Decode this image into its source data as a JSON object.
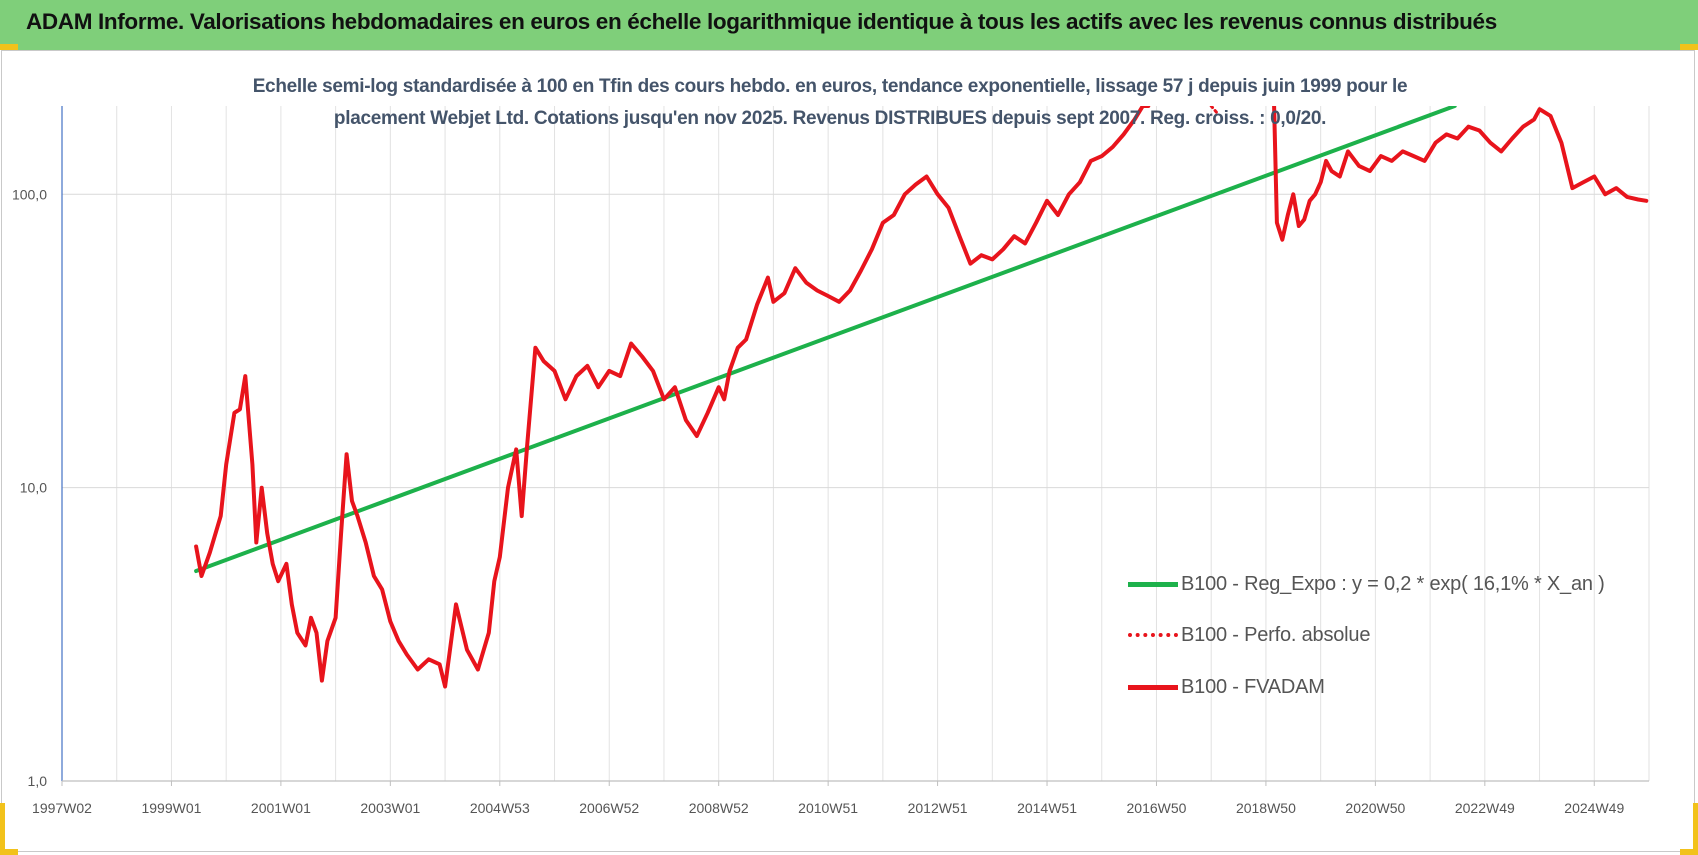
{
  "header": {
    "title": "ADAM Informe. Valorisations hebdomadaires en euros en échelle logarithmique identique à tous les actifs avec les revenus connus distribués"
  },
  "chart_data": {
    "type": "line",
    "title_line1": "Echelle semi-log standardisée à 100 en Tfin des cours hebdo. en euros, tendance exponentielle, lissage 57 j depuis juin 1999 pour le",
    "title_line2": "placement Webjet Ltd. Cotations jusqu'en nov 2025. Revenus DISTRIBUES depuis sept 2007. Reg. croiss. : 0,0/20.",
    "y_scale": "log",
    "ylim": [
      1,
      200
    ],
    "xlim": [
      1997.0,
      2026.0
    ],
    "y_ticks": [
      {
        "value": 1,
        "label": "1,0"
      },
      {
        "value": 10,
        "label": "10,0"
      },
      {
        "value": 100,
        "label": "100,0"
      }
    ],
    "x_ticks": [
      {
        "value": 1997.0,
        "label": "1997W02"
      },
      {
        "value": 1999.0,
        "label": "1999W01"
      },
      {
        "value": 2001.0,
        "label": "2001W01"
      },
      {
        "value": 2003.0,
        "label": "2003W01"
      },
      {
        "value": 2005.0,
        "label": "2004W53"
      },
      {
        "value": 2007.0,
        "label": "2006W52"
      },
      {
        "value": 2009.0,
        "label": "2008W52"
      },
      {
        "value": 2011.0,
        "label": "2010W51"
      },
      {
        "value": 2013.0,
        "label": "2012W51"
      },
      {
        "value": 2015.0,
        "label": "2014W51"
      },
      {
        "value": 2017.0,
        "label": "2016W50"
      },
      {
        "value": 2019.0,
        "label": "2018W50"
      },
      {
        "value": 2021.0,
        "label": "2020W50"
      },
      {
        "value": 2023.0,
        "label": "2022W49"
      },
      {
        "value": 2025.0,
        "label": "2024W49"
      }
    ],
    "grid": true,
    "legend_position": "right",
    "series": [
      {
        "name": "B100 - Reg_Expo : y = 0,2 * exp( 16,1% *  X_an )",
        "color": "#1db14b",
        "style": "solid",
        "x": [
          1999.45,
          2022.45
        ],
        "y": [
          5.2,
          200
        ]
      },
      {
        "name": "B100 - Perfo. absolue",
        "color": "#e8141c",
        "style": "dotted",
        "x": [
          2018.0,
          2018.1
        ],
        "y": [
          200,
          190
        ]
      },
      {
        "name": "B100 - FVADAM",
        "color": "#e8141c",
        "style": "solid",
        "x": [
          1999.45,
          1999.55,
          1999.7,
          1999.9,
          2000.0,
          2000.15,
          2000.25,
          2000.35,
          2000.48,
          2000.55,
          2000.65,
          2000.75,
          2000.85,
          2000.95,
          2001.1,
          2001.2,
          2001.3,
          2001.45,
          2001.55,
          2001.65,
          2001.75,
          2001.85,
          2002.0,
          2002.1,
          2002.2,
          2002.3,
          2002.4,
          2002.55,
          2002.7,
          2002.85,
          2003.0,
          2003.15,
          2003.3,
          2003.5,
          2003.7,
          2003.9,
          2004.0,
          2004.2,
          2004.4,
          2004.6,
          2004.8,
          2004.9,
          2005.0,
          2005.15,
          2005.3,
          2005.4,
          2005.5,
          2005.65,
          2005.8,
          2006.0,
          2006.2,
          2006.4,
          2006.6,
          2006.8,
          2007.0,
          2007.2,
          2007.4,
          2007.6,
          2007.8,
          2008.0,
          2008.2,
          2008.4,
          2008.6,
          2008.8,
          2009.0,
          2009.1,
          2009.2,
          2009.35,
          2009.5,
          2009.7,
          2009.9,
          2010.0,
          2010.2,
          2010.4,
          2010.6,
          2010.8,
          2011.0,
          2011.2,
          2011.4,
          2011.6,
          2011.8,
          2012.0,
          2012.2,
          2012.4,
          2012.6,
          2012.8,
          2013.0,
          2013.2,
          2013.4,
          2013.6,
          2013.8,
          2014.0,
          2014.2,
          2014.4,
          2014.6,
          2014.8,
          2015.0,
          2015.2,
          2015.4,
          2015.6,
          2015.8,
          2016.0,
          2016.2,
          2016.4,
          2016.6,
          2016.75,
          2016.85
        ],
        "y": [
          6.3,
          5.0,
          6.0,
          8.0,
          12.0,
          18.0,
          18.5,
          24.0,
          12.0,
          6.5,
          10.0,
          7.0,
          5.5,
          4.8,
          5.5,
          4.0,
          3.2,
          2.9,
          3.6,
          3.2,
          2.2,
          3.0,
          3.6,
          7.0,
          13.0,
          9.0,
          8.0,
          6.5,
          5.0,
          4.5,
          3.5,
          3.0,
          2.7,
          2.4,
          2.6,
          2.5,
          2.1,
          4.0,
          2.8,
          2.4,
          3.2,
          4.8,
          5.8,
          10.0,
          13.5,
          8.0,
          14.0,
          30.0,
          27.0,
          25.0,
          20.0,
          24.0,
          26.0,
          22.0,
          25.0,
          24.0,
          31.0,
          28.0,
          25.0,
          20.0,
          22.0,
          17.0,
          15.0,
          18.0,
          22.0,
          20.0,
          25.0,
          30.0,
          32.0,
          42.0,
          52.0,
          43.0,
          46.0,
          56.0,
          50.0,
          47.0,
          45.0,
          43.0,
          47.0,
          55.0,
          65.0,
          80.0,
          85.0,
          100.0,
          108.0,
          115.0,
          100.0,
          90.0,
          72.0,
          58.0,
          62.0,
          60.0,
          65.0,
          72.0,
          68.0,
          80.0,
          95.0,
          85.0,
          100.0,
          110.0,
          130.0,
          135.0,
          145.0,
          160.0,
          180.0,
          200.0,
          200.0
        ]
      },
      {
        "name": "",
        "color": "#e8141c",
        "style": "solid",
        "x": [
          2019.15,
          2019.2,
          2019.3,
          2019.4,
          2019.5,
          2019.6,
          2019.7,
          2019.8,
          2019.9,
          2020.0,
          2020.1,
          2020.2,
          2020.35,
          2020.5,
          2020.7,
          2020.9,
          2021.1,
          2021.3,
          2021.5,
          2021.7,
          2021.9,
          2022.1,
          2022.3,
          2022.5,
          2022.7,
          2022.9,
          2023.1,
          2023.3,
          2023.5,
          2023.7,
          2023.9,
          2024.0,
          2024.2,
          2024.4,
          2024.6,
          2024.8,
          2025.0,
          2025.2,
          2025.4,
          2025.6,
          2025.8,
          2025.95
        ],
        "y": [
          200,
          80.0,
          70.0,
          85.0,
          100.0,
          78.0,
          82.0,
          95.0,
          100.0,
          110.0,
          130.0,
          120.0,
          115.0,
          140.0,
          125.0,
          120.0,
          135.0,
          130.0,
          140.0,
          135.0,
          130.0,
          150.0,
          160.0,
          155.0,
          170.0,
          165.0,
          150.0,
          140.0,
          155.0,
          170.0,
          180.0,
          195.0,
          185.0,
          150.0,
          105.0,
          110.0,
          115.0,
          100.0,
          105.0,
          98.0,
          96.0,
          95.0
        ]
      }
    ]
  }
}
